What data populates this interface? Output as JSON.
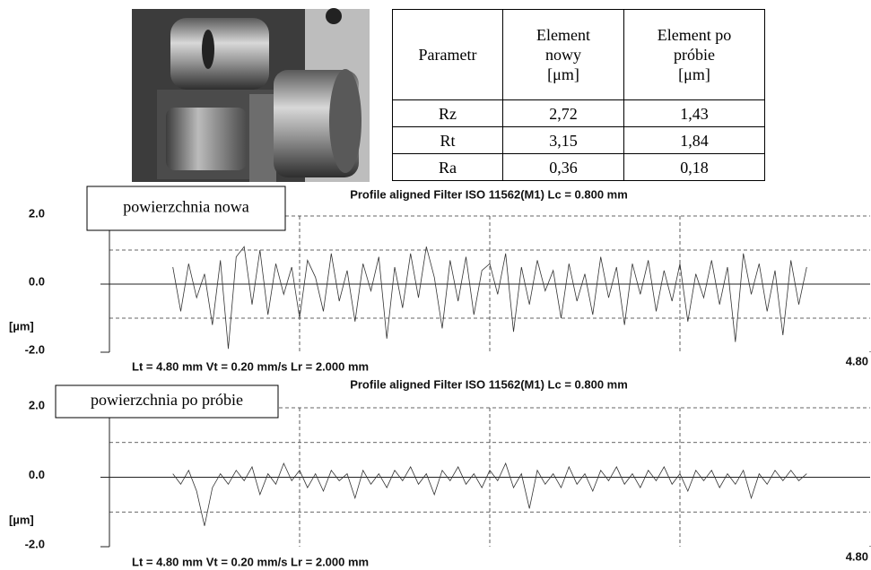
{
  "table": {
    "header": [
      "Parametr",
      "Element\nnowy\n[μm]",
      "Element po\npróbie\n[μm]"
    ],
    "rows": [
      [
        "Rz",
        "2,72",
        "1,43"
      ],
      [
        "Rt",
        "3,15",
        "1,84"
      ],
      [
        "Ra",
        "0,36",
        "0,18"
      ]
    ]
  },
  "chart_data": [
    {
      "type": "line",
      "title": "Profile aligned  Filter  ISO 11562(M1)  Lc = 0.800  mm",
      "annotation": "powierzchnia nowa",
      "footer": "Lt = 4.80  mm   Vt = 0.20  mm/s   Lr = 2.000  mm",
      "ylabel": "[µm]",
      "color": "#333333",
      "xlim": [
        0,
        4.8
      ],
      "xticks": [
        {
          "value": 4.8,
          "label": "4.80"
        }
      ],
      "xgrid": [
        1.2,
        2.4,
        3.6
      ],
      "ylim": [
        -2,
        2
      ],
      "yticks": [
        {
          "value": 2,
          "label": "2.0"
        },
        {
          "value": 0,
          "label": "0.0"
        },
        {
          "value": -2,
          "label": "-2.0"
        }
      ],
      "ygrid": [
        2,
        1,
        -1
      ],
      "x": [
        0.4,
        0.45,
        0.5,
        0.55,
        0.6,
        0.65,
        0.7,
        0.75,
        0.8,
        0.85,
        0.9,
        0.95,
        1.0,
        1.05,
        1.1,
        1.15,
        1.2,
        1.25,
        1.3,
        1.35,
        1.4,
        1.45,
        1.5,
        1.55,
        1.6,
        1.65,
        1.7,
        1.75,
        1.8,
        1.85,
        1.9,
        1.95,
        2.0,
        2.05,
        2.1,
        2.15,
        2.2,
        2.25,
        2.3,
        2.35,
        2.4,
        2.45,
        2.5,
        2.55,
        2.6,
        2.65,
        2.7,
        2.75,
        2.8,
        2.85,
        2.9,
        2.95,
        3.0,
        3.05,
        3.1,
        3.15,
        3.2,
        3.25,
        3.3,
        3.35,
        3.4,
        3.45,
        3.5,
        3.55,
        3.6,
        3.65,
        3.7,
        3.75,
        3.8,
        3.85,
        3.9,
        3.95,
        4.0,
        4.05,
        4.1,
        4.15,
        4.2,
        4.25,
        4.3,
        4.35,
        4.4
      ],
      "values": [
        0.5,
        -0.8,
        0.6,
        -0.4,
        0.3,
        -1.2,
        0.7,
        -1.9,
        0.8,
        1.1,
        -0.6,
        1.0,
        -0.9,
        0.6,
        -0.3,
        0.5,
        -1.0,
        0.7,
        0.2,
        -0.8,
        0.9,
        -0.5,
        0.4,
        -1.1,
        0.6,
        -0.2,
        0.8,
        -1.6,
        0.5,
        -0.7,
        0.9,
        -0.4,
        1.1,
        0.2,
        -1.3,
        0.7,
        -0.5,
        0.8,
        -0.9,
        0.4,
        0.6,
        -0.3,
        0.9,
        -1.4,
        0.5,
        -0.6,
        0.7,
        -0.2,
        0.4,
        -1.0,
        0.6,
        -0.5,
        0.3,
        -0.9,
        0.8,
        -0.4,
        0.5,
        -1.2,
        0.6,
        -0.3,
        0.7,
        -0.8,
        0.4,
        -0.5,
        0.6,
        -1.1,
        0.3,
        -0.4,
        0.7,
        -0.6,
        0.5,
        -1.7,
        0.9,
        -0.3,
        0.6,
        -0.8,
        0.4,
        -1.5,
        0.7,
        -0.6,
        0.5
      ]
    },
    {
      "type": "line",
      "title": "Profile aligned  Filter  ISO 11562(M1)  Lc = 0.800  mm",
      "annotation": "powierzchnia po próbie",
      "footer": "Lt = 4.80  mm    Vt = 0.20  mm/s    Lr = 2.000  mm",
      "ylabel": "[µm]",
      "color": "#333333",
      "xlim": [
        0,
        4.8
      ],
      "xticks": [
        {
          "value": 4.8,
          "label": "4.80"
        }
      ],
      "xgrid": [
        1.2,
        2.4,
        3.6
      ],
      "ylim": [
        -2,
        2
      ],
      "yticks": [
        {
          "value": 2,
          "label": "2.0"
        },
        {
          "value": 0,
          "label": "0.0"
        },
        {
          "value": -2,
          "label": "-2.0"
        }
      ],
      "ygrid": [
        2,
        1,
        -1
      ],
      "x": [
        0.4,
        0.45,
        0.5,
        0.55,
        0.6,
        0.65,
        0.7,
        0.75,
        0.8,
        0.85,
        0.9,
        0.95,
        1.0,
        1.05,
        1.1,
        1.15,
        1.2,
        1.25,
        1.3,
        1.35,
        1.4,
        1.45,
        1.5,
        1.55,
        1.6,
        1.65,
        1.7,
        1.75,
        1.8,
        1.85,
        1.9,
        1.95,
        2.0,
        2.05,
        2.1,
        2.15,
        2.2,
        2.25,
        2.3,
        2.35,
        2.4,
        2.45,
        2.5,
        2.55,
        2.6,
        2.65,
        2.7,
        2.75,
        2.8,
        2.85,
        2.9,
        2.95,
        3.0,
        3.05,
        3.1,
        3.15,
        3.2,
        3.25,
        3.3,
        3.35,
        3.4,
        3.45,
        3.5,
        3.55,
        3.6,
        3.65,
        3.7,
        3.75,
        3.8,
        3.85,
        3.9,
        3.95,
        4.0,
        4.05,
        4.1,
        4.15,
        4.2,
        4.25,
        4.3,
        4.35,
        4.4
      ],
      "values": [
        0.1,
        -0.2,
        0.2,
        -0.4,
        -1.4,
        -0.3,
        0.1,
        -0.2,
        0.2,
        -0.1,
        0.3,
        -0.5,
        0.1,
        -0.2,
        0.4,
        -0.1,
        0.2,
        -0.3,
        0.1,
        -0.4,
        0.2,
        -0.1,
        0.1,
        -0.6,
        0.2,
        -0.2,
        0.1,
        -0.3,
        0.2,
        -0.1,
        0.3,
        -0.2,
        0.1,
        -0.5,
        0.2,
        -0.1,
        0.3,
        -0.2,
        0.1,
        -0.3,
        0.2,
        -0.1,
        0.4,
        -0.3,
        0.1,
        -0.9,
        0.2,
        -0.2,
        0.1,
        -0.3,
        0.3,
        -0.2,
        0.1,
        -0.4,
        0.2,
        -0.1,
        0.3,
        -0.2,
        0.1,
        -0.3,
        0.2,
        -0.1,
        0.3,
        -0.2,
        0.1,
        -0.4,
        0.2,
        -0.1,
        0.2,
        -0.3,
        0.1,
        -0.2,
        0.2,
        -0.6,
        0.1,
        -0.2,
        0.2,
        -0.1,
        0.2,
        -0.1,
        0.1
      ]
    }
  ]
}
